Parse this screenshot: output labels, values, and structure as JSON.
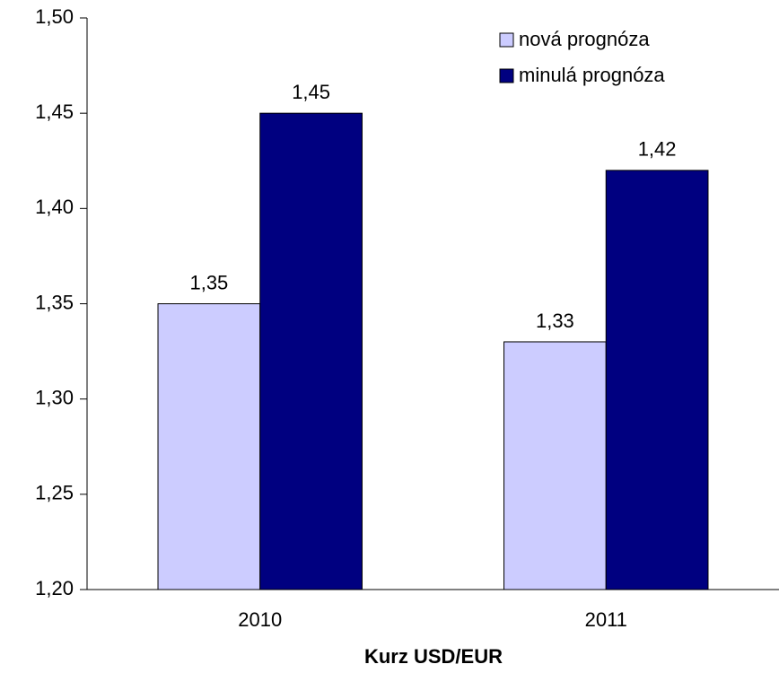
{
  "chart_data": {
    "type": "bar",
    "x_label": "Kurz USD/EUR",
    "categories": [
      "2010",
      "2011"
    ],
    "series": [
      {
        "name": "nová prognóza",
        "color": "#ccccff",
        "values": [
          1.35,
          1.33
        ],
        "value_labels": [
          "1,35",
          "1,33"
        ]
      },
      {
        "name": "minulá prognóza",
        "color": "#000080",
        "values": [
          1.45,
          1.42
        ],
        "value_labels": [
          "1,45",
          "1,42"
        ]
      }
    ],
    "ylim": [
      1.2,
      1.5
    ],
    "yticks": [
      {
        "value": 1.2,
        "label": "1,20"
      },
      {
        "value": 1.25,
        "label": "1,25"
      },
      {
        "value": 1.3,
        "label": "1,30"
      },
      {
        "value": 1.35,
        "label": "1,35"
      },
      {
        "value": 1.4,
        "label": "1,40"
      },
      {
        "value": 1.45,
        "label": "1,45"
      },
      {
        "value": 1.5,
        "label": "1,50"
      }
    ],
    "legend": "top-right",
    "grid": false
  }
}
